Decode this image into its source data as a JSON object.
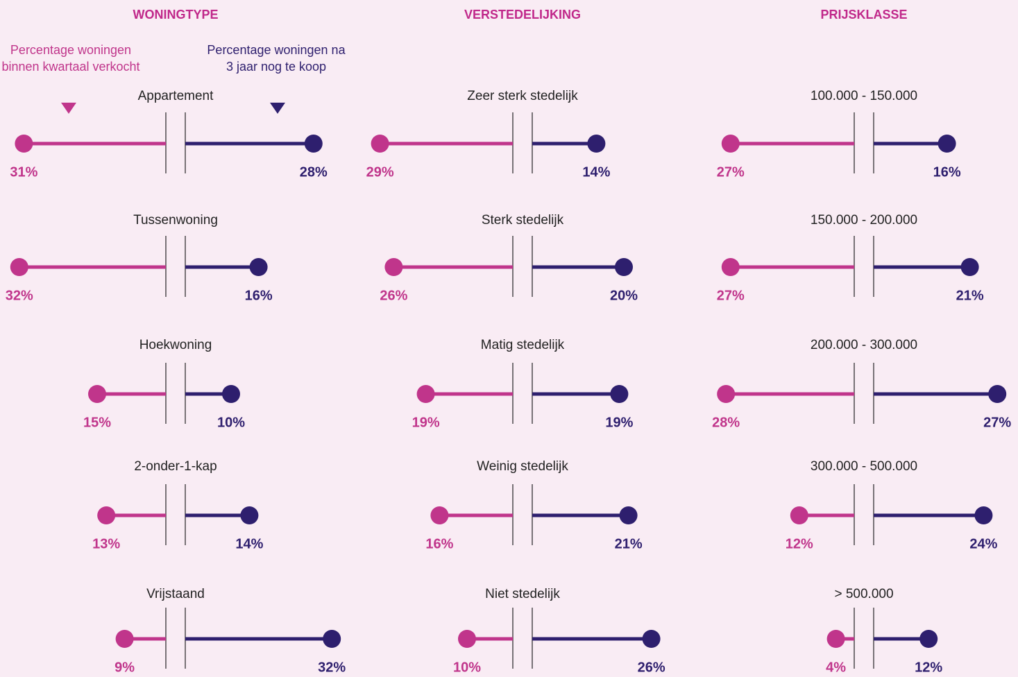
{
  "chart_data": [
    {
      "type": "dumbbell",
      "title": "WONINGTYPE",
      "categories": [
        "Appartement",
        "Tussenwoning",
        "Hoekwoning",
        "2-onder-1-kap",
        "Vrijstaand"
      ],
      "series": [
        {
          "name": "Percentage woningen binnen kwartaal verkocht",
          "color": "#c0358b",
          "values": [
            31,
            32,
            15,
            13,
            9
          ],
          "value_labels": [
            "31%",
            "32%",
            "15%",
            "13%",
            "9%"
          ]
        },
        {
          "name": "Percentage woningen na 3 jaar nog te koop",
          "color": "#2e1f6e",
          "values": [
            28,
            16,
            10,
            14,
            32
          ],
          "value_labels": [
            "28%",
            "16%",
            "10%",
            "14%",
            "32%"
          ]
        }
      ]
    },
    {
      "type": "dumbbell",
      "title": "VERSTEDELIJKING",
      "categories": [
        "Zeer sterk stedelijk",
        "Sterk stedelijk",
        "Matig stedelijk",
        "Weinig stedelijk",
        "Niet stedelijk"
      ],
      "series": [
        {
          "color": "#c0358b",
          "values": [
            29,
            26,
            19,
            16,
            10
          ],
          "value_labels": [
            "29%",
            "26%",
            "19%",
            "16%",
            "10%"
          ]
        },
        {
          "color": "#2e1f6e",
          "values": [
            14,
            20,
            19,
            21,
            26
          ],
          "value_labels": [
            "14%",
            "20%",
            "19%",
            "21%",
            "26%"
          ]
        }
      ]
    },
    {
      "type": "dumbbell",
      "title": "PRIJSKLASSE",
      "categories": [
        "100.000 - 150.000",
        "150.000 - 200.000",
        "200.000 - 300.000",
        "300.000 - 500.000",
        "> 500.000"
      ],
      "series": [
        {
          "color": "#c0358b",
          "values": [
            27,
            27,
            28,
            12,
            4
          ],
          "value_labels": [
            "27%",
            "27%",
            "28%",
            "12%",
            "4%"
          ]
        },
        {
          "color": "#2e1f6e",
          "values": [
            16,
            21,
            27,
            24,
            12
          ],
          "value_labels": [
            "16%",
            "21%",
            "27%",
            "24%",
            "12%"
          ]
        }
      ]
    }
  ]
}
